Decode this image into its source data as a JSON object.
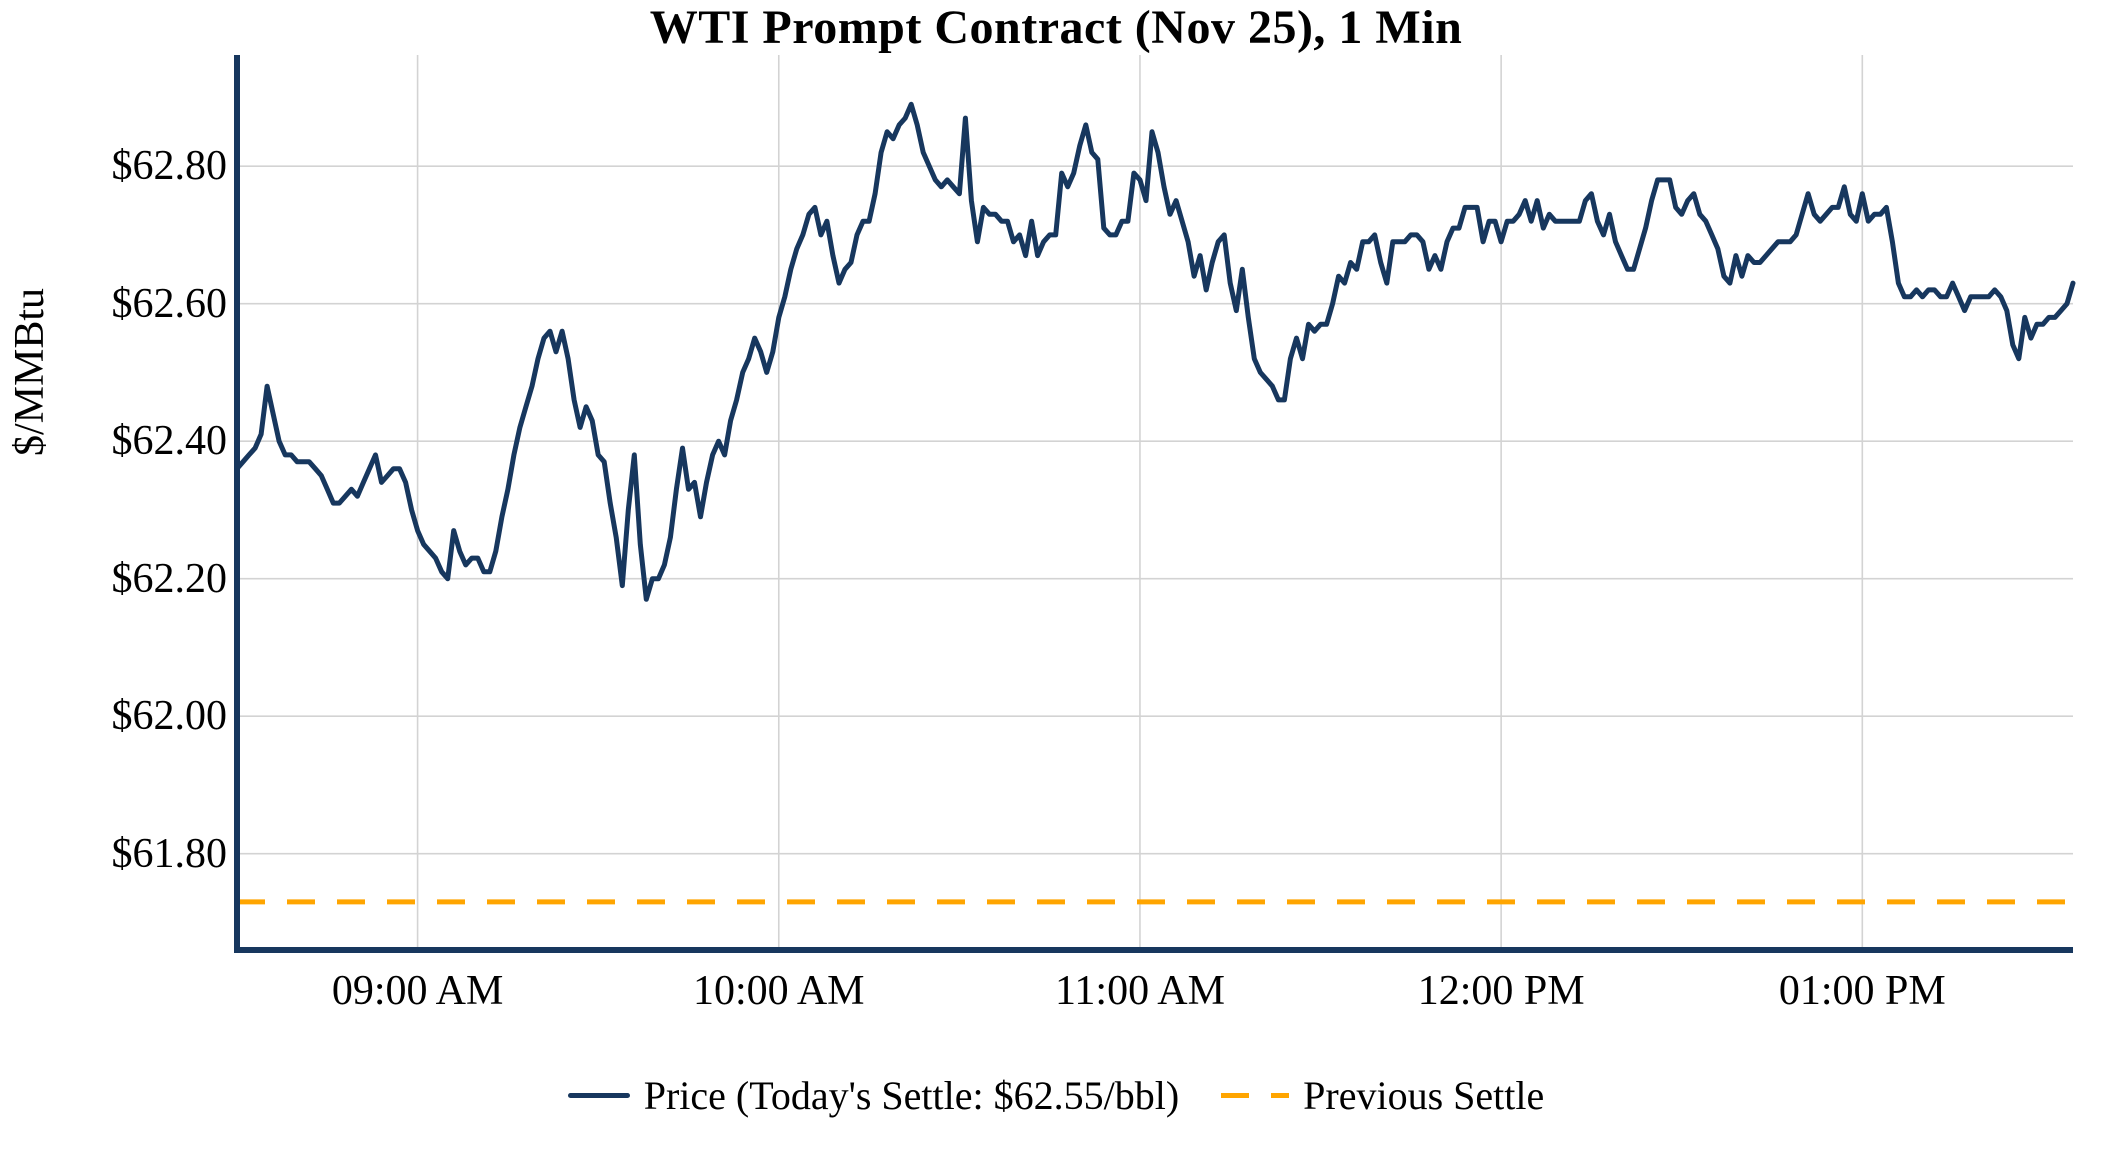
{
  "chart_data": {
    "type": "line",
    "title": "WTI Prompt Contract (Nov 25), 1 Min",
    "xlabel": "",
    "ylabel": "$/MMBtu",
    "x_tick_labels": [
      "09:00 AM",
      "10:00 AM",
      "11:00 AM",
      "12:00 PM",
      "01:00 PM"
    ],
    "x_tick_minutes": [
      30,
      90,
      150,
      210,
      270
    ],
    "x_start": "08:30 AM",
    "x_end": "01:35 PM",
    "x_step_minutes": 1,
    "y_ticks": [
      61.8,
      62.0,
      62.2,
      62.4,
      62.6,
      62.8
    ],
    "y_tick_labels": [
      "$61.80",
      "$62.00",
      "$62.20",
      "$62.40",
      "$62.60",
      "$62.80"
    ],
    "ylim": [
      61.66,
      62.96
    ],
    "grid": true,
    "legend_position": "bottom",
    "today_settle": 62.55,
    "previous_settle": 61.73,
    "series": [
      {
        "name": "Price (Today's Settle: $62.55/bbl)",
        "type": "line",
        "style": "solid",
        "color": "#17375E",
        "values": [
          62.36,
          62.37,
          62.38,
          62.39,
          62.41,
          62.48,
          62.44,
          62.4,
          62.38,
          62.38,
          62.37,
          62.37,
          62.37,
          62.36,
          62.35,
          62.33,
          62.31,
          62.31,
          62.32,
          62.33,
          62.32,
          62.34,
          62.36,
          62.38,
          62.34,
          62.35,
          62.36,
          62.36,
          62.34,
          62.3,
          62.27,
          62.25,
          62.24,
          62.23,
          62.21,
          62.2,
          62.27,
          62.24,
          62.22,
          62.23,
          62.23,
          62.21,
          62.21,
          62.24,
          62.29,
          62.33,
          62.38,
          62.42,
          62.45,
          62.48,
          62.52,
          62.55,
          62.56,
          62.53,
          62.56,
          62.52,
          62.46,
          62.42,
          62.45,
          62.43,
          62.38,
          62.37,
          62.31,
          62.26,
          62.19,
          62.3,
          62.38,
          62.25,
          62.17,
          62.2,
          62.2,
          62.22,
          62.26,
          62.33,
          62.39,
          62.33,
          62.34,
          62.29,
          62.34,
          62.38,
          62.4,
          62.38,
          62.43,
          62.46,
          62.5,
          62.52,
          62.55,
          62.53,
          62.5,
          62.53,
          62.58,
          62.61,
          62.65,
          62.68,
          62.7,
          62.73,
          62.74,
          62.7,
          62.72,
          62.67,
          62.63,
          62.65,
          62.66,
          62.7,
          62.72,
          62.72,
          62.76,
          62.82,
          62.85,
          62.84,
          62.86,
          62.87,
          62.89,
          62.86,
          62.82,
          62.8,
          62.78,
          62.77,
          62.78,
          62.77,
          62.76,
          62.87,
          62.75,
          62.69,
          62.74,
          62.73,
          62.73,
          62.72,
          62.72,
          62.69,
          62.7,
          62.67,
          62.72,
          62.67,
          62.69,
          62.7,
          62.7,
          62.79,
          62.77,
          62.79,
          62.83,
          62.86,
          62.82,
          62.81,
          62.71,
          62.7,
          62.7,
          62.72,
          62.72,
          62.79,
          62.78,
          62.75,
          62.85,
          62.82,
          62.77,
          62.73,
          62.75,
          62.72,
          62.69,
          62.64,
          62.67,
          62.62,
          62.66,
          62.69,
          62.7,
          62.63,
          62.59,
          62.65,
          62.58,
          62.52,
          62.5,
          62.49,
          62.48,
          62.46,
          62.46,
          62.52,
          62.55,
          62.52,
          62.57,
          62.56,
          62.57,
          62.57,
          62.6,
          62.64,
          62.63,
          62.66,
          62.65,
          62.69,
          62.69,
          62.7,
          62.66,
          62.63,
          62.69,
          62.69,
          62.69,
          62.7,
          62.7,
          62.69,
          62.65,
          62.67,
          62.65,
          62.69,
          62.71,
          62.71,
          62.74,
          62.74,
          62.74,
          62.69,
          62.72,
          62.72,
          62.69,
          62.72,
          62.72,
          62.73,
          62.75,
          62.72,
          62.75,
          62.71,
          62.73,
          62.72,
          62.72,
          62.72,
          62.72,
          62.72,
          62.75,
          62.76,
          62.72,
          62.7,
          62.73,
          62.69,
          62.67,
          62.65,
          62.65,
          62.68,
          62.71,
          62.75,
          62.78,
          62.78,
          62.78,
          62.74,
          62.73,
          62.75,
          62.76,
          62.73,
          62.72,
          62.7,
          62.68,
          62.64,
          62.63,
          62.67,
          62.64,
          62.67,
          62.66,
          62.66,
          62.67,
          62.68,
          62.69,
          62.69,
          62.69,
          62.7,
          62.73,
          62.76,
          62.73,
          62.72,
          62.73,
          62.74,
          62.74,
          62.77,
          62.73,
          62.72,
          62.76,
          62.72,
          62.73,
          62.73,
          62.74,
          62.69,
          62.63,
          62.61,
          62.61,
          62.62,
          62.61,
          62.62,
          62.62,
          62.61,
          62.61,
          62.63,
          62.61,
          62.59,
          62.61,
          62.61,
          62.61,
          62.61,
          62.62,
          62.61,
          62.59,
          62.54,
          62.52,
          62.58,
          62.55,
          62.57,
          62.57,
          62.58,
          62.58,
          62.59,
          62.6,
          62.63
        ]
      },
      {
        "name": "Previous Settle",
        "type": "hline",
        "style": "dashed",
        "color": "#FFA500",
        "value": 61.73
      }
    ]
  },
  "colors": {
    "price_line": "#17375E",
    "previous_settle": "#FFA500",
    "grid": "#D3D3D3",
    "axis_spine": "#17375E",
    "background": "#FFFFFF",
    "text": "#000000"
  }
}
